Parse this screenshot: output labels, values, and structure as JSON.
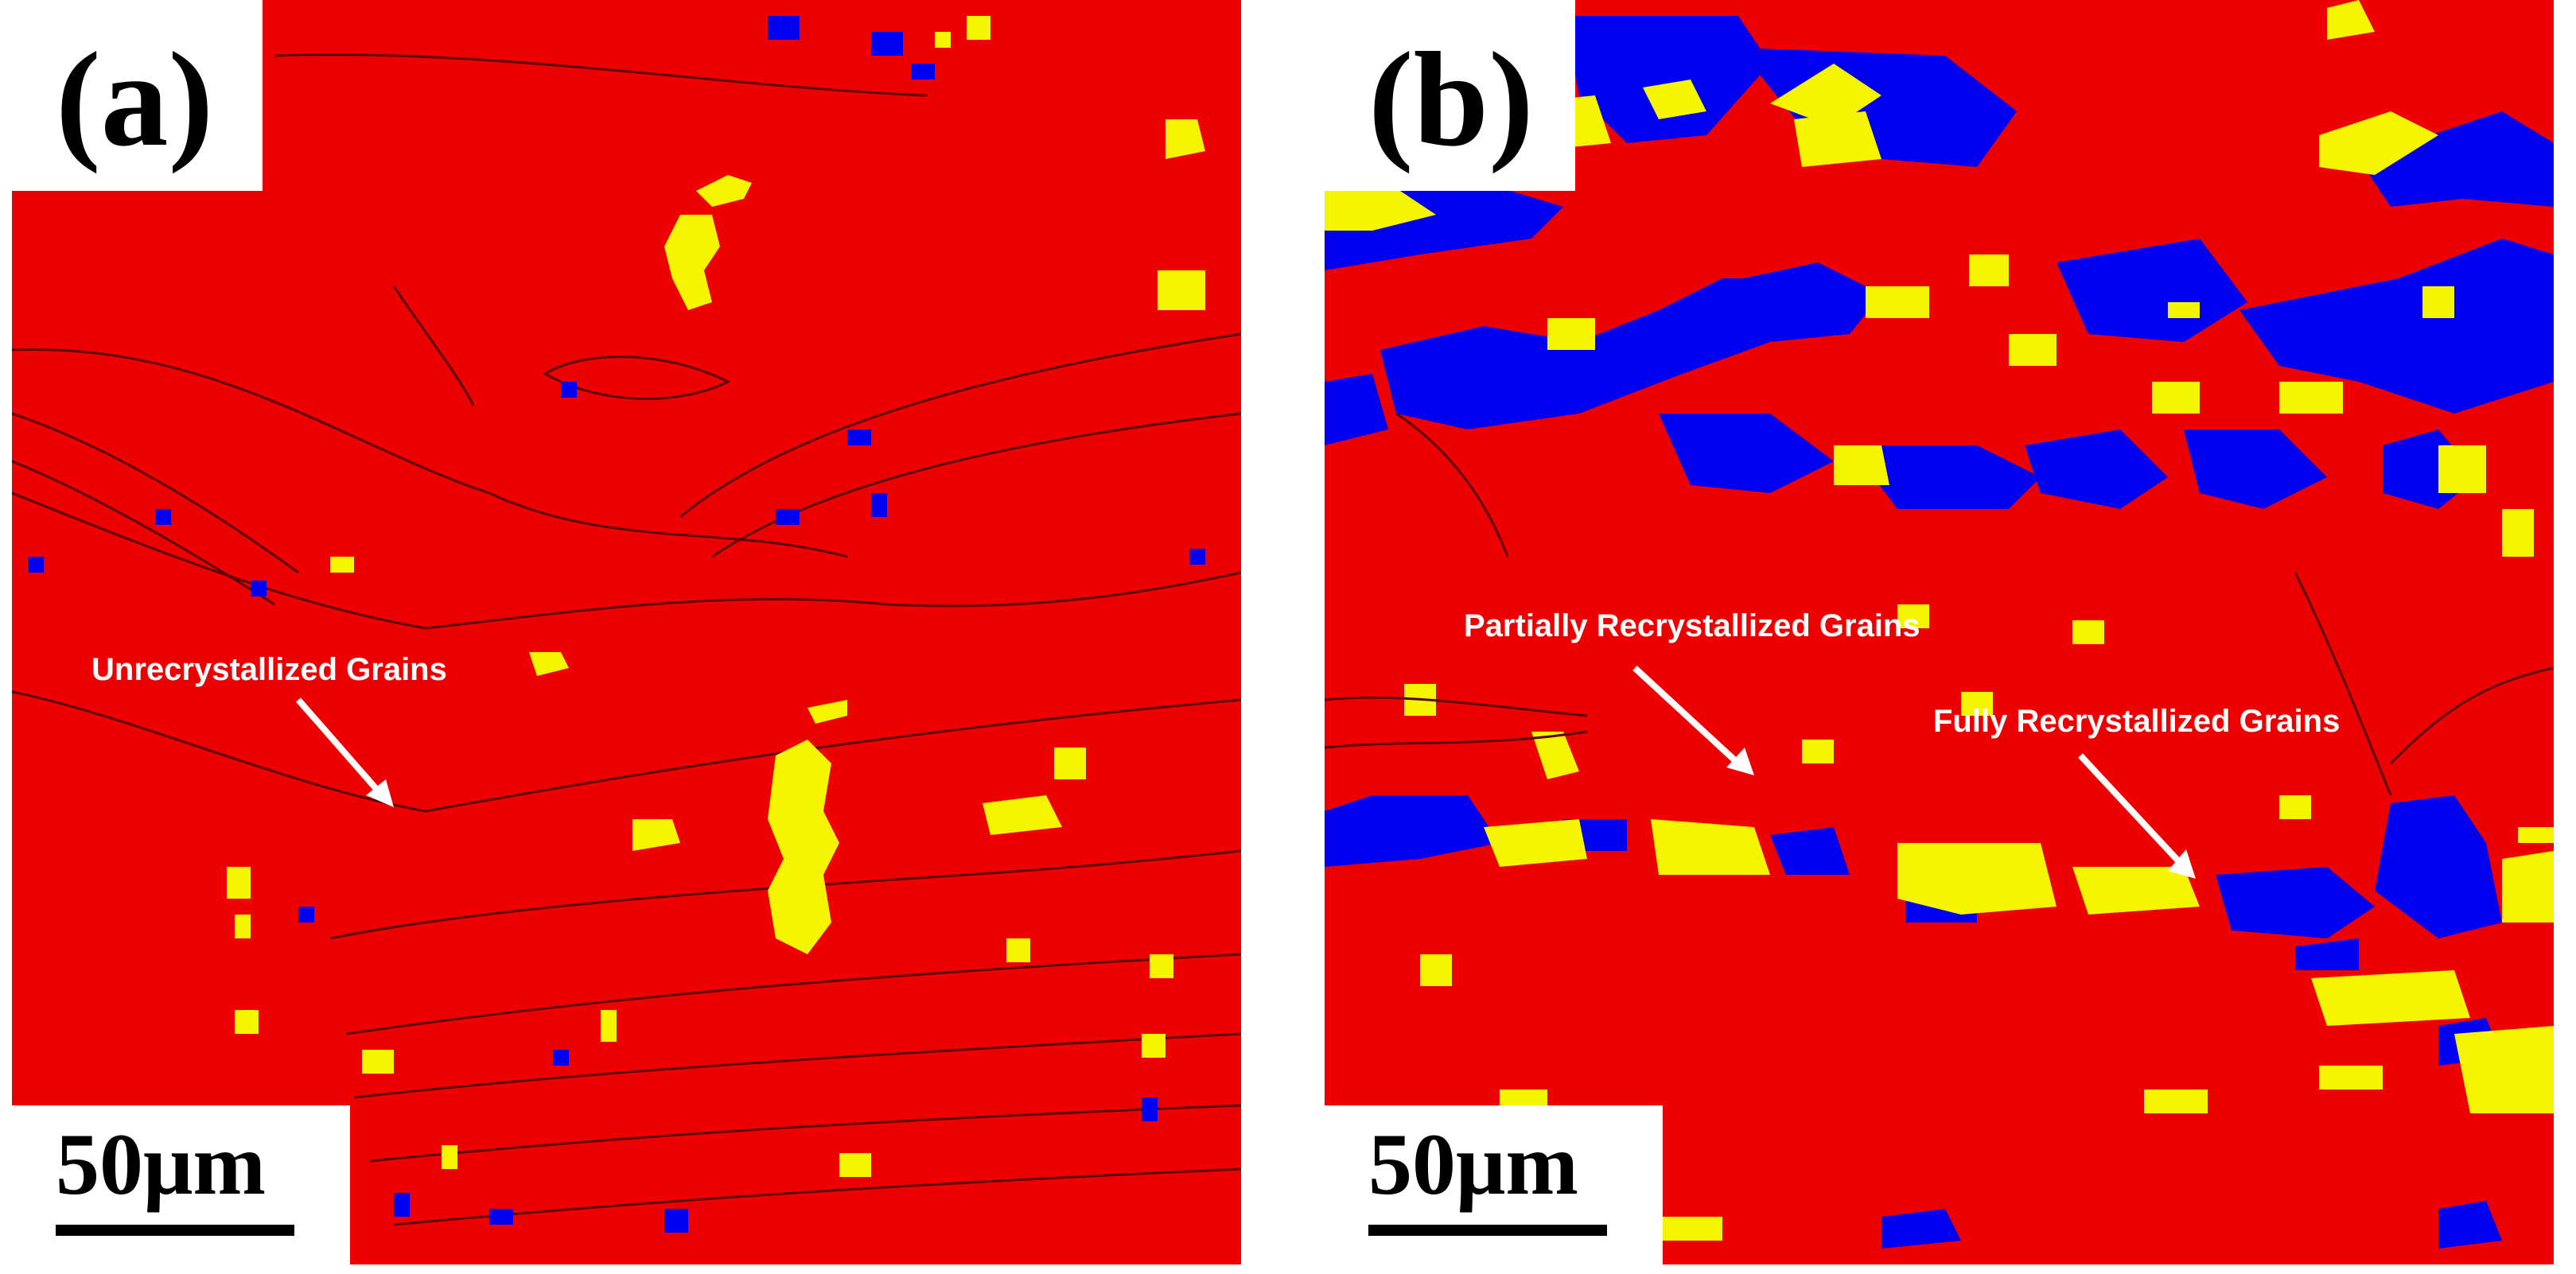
{
  "panels": [
    {
      "id": "a",
      "label": "(a)",
      "scale_bar": "50μm",
      "annotations": [
        {
          "text": "Unrecrystallized Grains"
        }
      ]
    },
    {
      "id": "b",
      "label": "(b)",
      "scale_bar": "50μm",
      "annotations": [
        {
          "text": "Partially Recrystallized Grains"
        },
        {
          "text": "Fully Recrystallized Grains"
        }
      ]
    }
  ],
  "colors": {
    "deformed": "#ee0000",
    "substructured": "#f5f500",
    "recrystallized": "#0000f0",
    "boundary": "#5a0000",
    "annotation_text": "#ffffff"
  }
}
